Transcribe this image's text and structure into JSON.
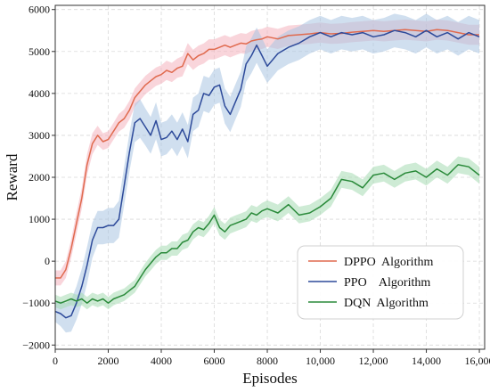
{
  "chart_data": {
    "type": "line",
    "xlabel": "Episodes",
    "ylabel": "Reward",
    "xlim": [
      0,
      16200
    ],
    "ylim": [
      -2100,
      6100
    ],
    "x_ticks": [
      0,
      2000,
      4000,
      6000,
      8000,
      10000,
      12000,
      14000,
      16000
    ],
    "x_tick_labels": [
      "0",
      "2000",
      "4000",
      "6000",
      "8000",
      "10,000",
      "12,000",
      "14,000",
      "16,000"
    ],
    "y_ticks": [
      -2000,
      -1000,
      0,
      1000,
      2000,
      3000,
      4000,
      5000,
      6000
    ],
    "y_tick_labels": [
      "−2000",
      "−1000",
      "0",
      "1000",
      "2000",
      "3000",
      "4000",
      "5000",
      "6000"
    ],
    "grid": true,
    "legend_position": "bottom-right",
    "x": [
      0,
      200,
      400,
      600,
      800,
      1000,
      1200,
      1400,
      1600,
      1800,
      2000,
      2200,
      2400,
      2600,
      2800,
      3000,
      3200,
      3400,
      3600,
      3800,
      4000,
      4200,
      4400,
      4600,
      4800,
      5000,
      5200,
      5400,
      5600,
      5800,
      6000,
      6200,
      6400,
      6600,
      6800,
      7000,
      7200,
      7400,
      7600,
      7800,
      8000,
      8400,
      8800,
      9200,
      9600,
      10000,
      10400,
      10800,
      11200,
      11600,
      12000,
      12400,
      12800,
      13200,
      13600,
      14000,
      14400,
      14800,
      15200,
      15600,
      16000
    ],
    "series": [
      {
        "name": "DPPO Algorithm",
        "color": "#e06a4e",
        "band_color": "#f4b2bd",
        "values": [
          -400,
          -400,
          -200,
          300,
          900,
          1500,
          2300,
          2800,
          3000,
          2850,
          2900,
          3100,
          3300,
          3400,
          3600,
          3900,
          4050,
          4200,
          4300,
          4400,
          4450,
          4550,
          4500,
          4600,
          4650,
          4950,
          4800,
          4900,
          4950,
          5050,
          5050,
          5100,
          5150,
          5100,
          5150,
          5200,
          5180,
          5250,
          5280,
          5300,
          5350,
          5300,
          5380,
          5400,
          5420,
          5450,
          5420,
          5430,
          5460,
          5480,
          5500,
          5480,
          5500,
          5520,
          5500,
          5480,
          5520,
          5500,
          5450,
          5400,
          5400
        ],
        "band": [
          180,
          180,
          200,
          220,
          250,
          250,
          250,
          250,
          230,
          200,
          200,
          200,
          210,
          220,
          220,
          220,
          220,
          220,
          220,
          220,
          220,
          230,
          230,
          230,
          240,
          250,
          240,
          240,
          240,
          240,
          240,
          240,
          240,
          240,
          240,
          240,
          240,
          240,
          240,
          240,
          240,
          240,
          240,
          240,
          240,
          240,
          240,
          240,
          240,
          240,
          240,
          240,
          240,
          240,
          240,
          240,
          240,
          240,
          240,
          240,
          240
        ]
      },
      {
        "name": "PPO Algorithm",
        "color": "#2d4a9a",
        "band_color": "#a9c4e2",
        "values": [
          -1200,
          -1250,
          -1350,
          -1300,
          -1000,
          -600,
          -100,
          500,
          800,
          800,
          850,
          850,
          1000,
          1800,
          2600,
          3300,
          3400,
          3200,
          3000,
          3350,
          2900,
          2950,
          3100,
          2900,
          3150,
          2850,
          3500,
          3600,
          4000,
          3950,
          4150,
          4200,
          3700,
          3500,
          3800,
          4100,
          4700,
          4900,
          5150,
          4900,
          4650,
          4950,
          5100,
          5200,
          5350,
          5450,
          5350,
          5450,
          5400,
          5450,
          5350,
          5400,
          5500,
          5450,
          5350,
          5500,
          5350,
          5450,
          5300,
          5450,
          5350
        ],
        "band": [
          250,
          300,
          350,
          380,
          400,
          420,
          440,
          420,
          400,
          400,
          420,
          420,
          440,
          460,
          460,
          460,
          460,
          440,
          440,
          440,
          400,
          400,
          400,
          400,
          400,
          400,
          400,
          400,
          420,
          420,
          420,
          420,
          420,
          420,
          420,
          420,
          420,
          420,
          420,
          420,
          400,
          400,
          400,
          400,
          400,
          400,
          400,
          400,
          400,
          400,
          400,
          400,
          400,
          400,
          400,
          400,
          400,
          400,
          400,
          400,
          400
        ]
      },
      {
        "name": "DQN Algorithm",
        "color": "#2a8a3a",
        "band_color": "#a5dbb2",
        "values": [
          -950,
          -1000,
          -950,
          -900,
          -950,
          -900,
          -1000,
          -900,
          -950,
          -900,
          -1000,
          -900,
          -850,
          -800,
          -700,
          -600,
          -400,
          -200,
          -50,
          100,
          200,
          200,
          300,
          300,
          450,
          500,
          700,
          800,
          750,
          900,
          1100,
          800,
          700,
          850,
          900,
          950,
          1000,
          1150,
          1100,
          1200,
          1250,
          1150,
          1350,
          1100,
          1150,
          1300,
          1500,
          1950,
          1900,
          1750,
          2050,
          2100,
          1950,
          2100,
          2150,
          2000,
          2200,
          2050,
          2300,
          2250,
          2050
        ],
        "band": [
          150,
          150,
          150,
          150,
          150,
          150,
          150,
          150,
          150,
          150,
          150,
          150,
          150,
          150,
          150,
          150,
          160,
          160,
          170,
          170,
          170,
          170,
          170,
          170,
          180,
          180,
          180,
          180,
          180,
          180,
          190,
          190,
          190,
          190,
          190,
          190,
          190,
          190,
          190,
          190,
          200,
          200,
          200,
          200,
          200,
          200,
          200,
          200,
          200,
          200,
          200,
          200,
          200,
          200,
          200,
          200,
          200,
          200,
          200,
          200,
          200
        ]
      }
    ],
    "legend_labels": [
      "DPPO  Algorithm",
      "PPO    Algorithm",
      "DQN  Algorithm"
    ]
  }
}
